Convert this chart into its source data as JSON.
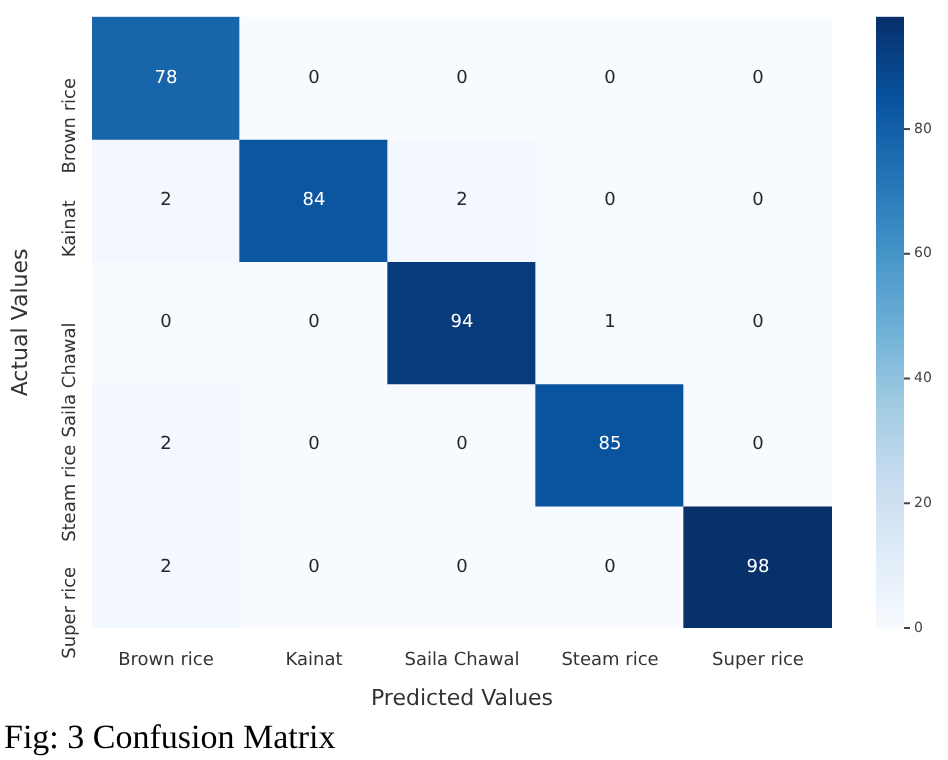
{
  "chart_data": {
    "type": "heatmap",
    "xlabel": "Predicted Values",
    "ylabel": "Actual Values",
    "categories": [
      "Brown rice",
      "Kainat",
      "Saila Chawal",
      "Steam rice",
      "Super rice"
    ],
    "y_categories": [
      "Brown rice",
      "Kainat",
      "Saila Chawal",
      "Steam rice",
      "Super rice"
    ],
    "cells": [
      [
        78,
        0,
        0,
        0,
        0
      ],
      [
        2,
        84,
        2,
        0,
        0
      ],
      [
        0,
        0,
        94,
        1,
        0
      ],
      [
        2,
        0,
        0,
        85,
        0
      ],
      [
        2,
        0,
        0,
        0,
        98
      ]
    ],
    "clim": [
      0,
      98
    ],
    "cticks": [
      0,
      20,
      40,
      60,
      80
    ],
    "data_labels": true,
    "annotations": [
      "Fig: 3 Confusion Matrix"
    ]
  }
}
